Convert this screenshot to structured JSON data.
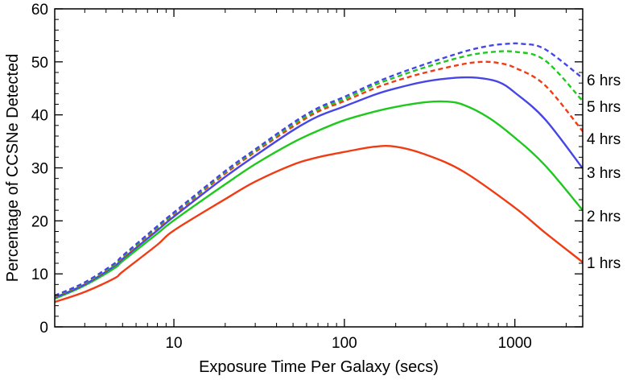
{
  "chart_data": {
    "type": "line",
    "title": "",
    "xlabel": "Exposure Time Per Galaxy (secs)",
    "ylabel": "Percentage of CCSNe Detected",
    "xscale": "log",
    "xlim": [
      2,
      2500
    ],
    "ylim": [
      0,
      60
    ],
    "xticks": [
      {
        "value": 10,
        "label": "10"
      },
      {
        "value": 100,
        "label": "100"
      },
      {
        "value": 1000,
        "label": "1000"
      }
    ],
    "yticks": [
      {
        "value": 0,
        "label": "0"
      },
      {
        "value": 10,
        "label": "10"
      },
      {
        "value": 20,
        "label": "20"
      },
      {
        "value": 30,
        "label": "30"
      },
      {
        "value": 40,
        "label": "40"
      },
      {
        "value": 50,
        "label": "50"
      },
      {
        "value": 60,
        "label": "60"
      }
    ],
    "grid": false,
    "legend": "right-edge labels",
    "series": [
      {
        "name": "1 hrs",
        "color": "#f03c14",
        "dash": false,
        "x": [
          2,
          3,
          4.5,
          5,
          8,
          10,
          20,
          30,
          50,
          70,
          100,
          150,
          200,
          300,
          500,
          1000,
          1500,
          2500
        ],
        "y": [
          4.7,
          6.6,
          9.2,
          10.4,
          15.5,
          18.2,
          24.1,
          27.4,
          30.6,
          32.0,
          33.0,
          34.0,
          34.0,
          32.5,
          29.3,
          22.5,
          17.8,
          12.2
        ]
      },
      {
        "name": "2 hrs",
        "color": "#1ec81e",
        "dash": false,
        "x": [
          2,
          3,
          4.5,
          5,
          8,
          10,
          20,
          30,
          50,
          70,
          100,
          150,
          200,
          300,
          400,
          500,
          700,
          1000,
          1500,
          2500
        ],
        "y": [
          5.3,
          7.8,
          11.1,
          12.4,
          17.6,
          20.1,
          26.9,
          30.7,
          34.8,
          37.0,
          39.0,
          40.6,
          41.5,
          42.4,
          42.5,
          41.9,
          39.5,
          35.7,
          30.5,
          22.0
        ]
      },
      {
        "name": "3 hrs",
        "color": "#4646e6",
        "dash": false,
        "x": [
          2,
          3,
          4.5,
          5,
          8,
          10,
          20,
          30,
          50,
          70,
          100,
          150,
          200,
          300,
          450,
          600,
          800,
          1000,
          1500,
          2500
        ],
        "y": [
          5.5,
          8.0,
          11.5,
          12.8,
          18.2,
          20.8,
          28.3,
          32.3,
          37.1,
          39.7,
          41.6,
          43.8,
          45.0,
          46.3,
          47.0,
          47.0,
          46.2,
          44.2,
          39.2,
          29.9
        ]
      },
      {
        "name": "4 hrs",
        "color": "#f03c14",
        "dash": true,
        "x": [
          2,
          3,
          4.5,
          5,
          8,
          10,
          20,
          30,
          50,
          70,
          100,
          150,
          200,
          300,
          500,
          650,
          800,
          1000,
          1500,
          2500
        ],
        "y": [
          5.7,
          8.2,
          11.7,
          13.0,
          18.6,
          21.2,
          28.9,
          33.0,
          37.8,
          40.6,
          42.6,
          45.0,
          46.4,
          48.0,
          49.6,
          50.0,
          49.8,
          48.9,
          45.6,
          36.9
        ]
      },
      {
        "name": "5 hrs",
        "color": "#1ec81e",
        "dash": true,
        "x": [
          2,
          3,
          4.5,
          5,
          8,
          10,
          20,
          30,
          50,
          70,
          100,
          150,
          200,
          300,
          500,
          700,
          1000,
          1500,
          2500
        ],
        "y": [
          5.8,
          8.3,
          11.8,
          13.2,
          18.8,
          21.4,
          29.2,
          33.3,
          38.2,
          41.0,
          43.0,
          45.6,
          47.1,
          49.0,
          51.0,
          51.8,
          51.9,
          50.3,
          42.6
        ]
      },
      {
        "name": "6 hrs",
        "color": "#4646e6",
        "dash": true,
        "x": [
          2,
          3,
          4.5,
          5,
          8,
          10,
          20,
          30,
          50,
          70,
          100,
          150,
          200,
          300,
          500,
          700,
          900,
          1100,
          1500,
          2500
        ],
        "y": [
          5.9,
          8.4,
          12.0,
          13.4,
          19.0,
          21.6,
          29.4,
          33.5,
          38.5,
          41.3,
          43.4,
          46.0,
          47.6,
          49.6,
          51.9,
          53.0,
          53.4,
          53.4,
          52.4,
          46.9
        ]
      }
    ]
  }
}
